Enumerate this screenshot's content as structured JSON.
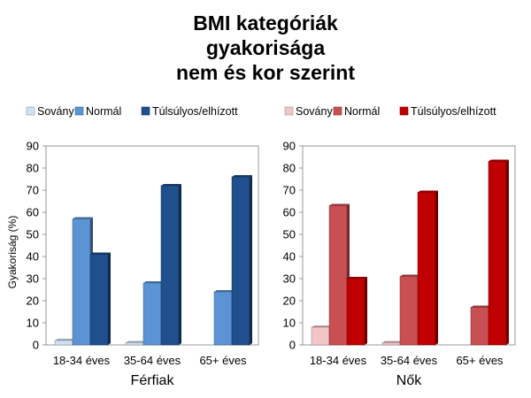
{
  "title_lines": [
    "BMI kategóriák",
    "gyakorisága",
    "nem és kor szerint"
  ],
  "ylabel": "Gyakoriság (%)",
  "chart_data": [
    {
      "type": "bar",
      "xlabel": "Férfiak",
      "ylabel": "Gyakoriság (%)",
      "ylim": [
        0,
        90
      ],
      "yticks": [
        0,
        10,
        20,
        30,
        40,
        50,
        60,
        70,
        80,
        90
      ],
      "legend_position": "top",
      "grid": false,
      "categories": [
        "18-34 éves",
        "35-64 éves",
        "65+ éves"
      ],
      "series": [
        {
          "name": "Sovány",
          "color": "#cfe1f2",
          "values": [
            2,
            1,
            0
          ]
        },
        {
          "name": "Normál",
          "color": "#5b93d4",
          "values": [
            57,
            28,
            24
          ]
        },
        {
          "name": "Túlsúlyos/elhízott",
          "color": "#1f4f8c",
          "values": [
            41,
            72,
            76
          ]
        }
      ]
    },
    {
      "type": "bar",
      "xlabel": "Nők",
      "ylim": [
        0,
        90
      ],
      "yticks": [
        0,
        10,
        20,
        30,
        40,
        50,
        60,
        70,
        80,
        90
      ],
      "legend_position": "top",
      "grid": false,
      "categories": [
        "18-34 éves",
        "35-64 éves",
        "65+ éves"
      ],
      "series": [
        {
          "name": "Sovány",
          "color": "#f2c6c9",
          "values": [
            8,
            1,
            0
          ]
        },
        {
          "name": "Normál",
          "color": "#c84f52",
          "values": [
            63,
            31,
            17
          ]
        },
        {
          "name": "Túlsúlyos/elhízott",
          "color": "#c00000",
          "values": [
            30,
            69,
            83
          ]
        }
      ]
    }
  ]
}
